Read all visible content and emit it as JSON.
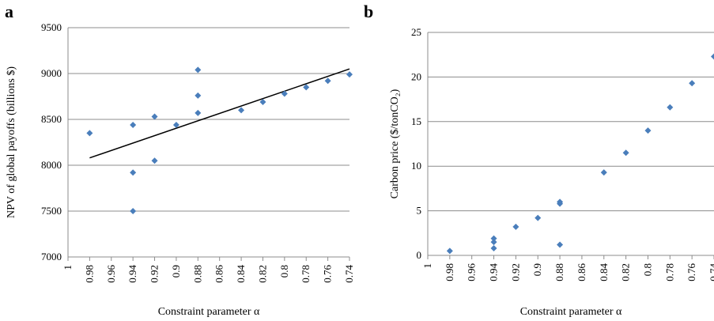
{
  "figure": {
    "panel_a": "a",
    "panel_b": "b"
  },
  "chart_data": [
    {
      "type": "scatter",
      "panel_label": "a",
      "title": "",
      "xlabel": "Constraint parameter α",
      "ylabel": "NPV of global payoffs (billions $)",
      "xlim": [
        1.0,
        0.74
      ],
      "ylim": [
        7000,
        9500
      ],
      "x_ticks": [
        "1",
        "0.98",
        "0.96",
        "0.94",
        "0.92",
        "0.9",
        "0.88",
        "0.86",
        "0.84",
        "0.82",
        "0.8",
        "0.78",
        "0.76",
        "0.74"
      ],
      "y_ticks": [
        "7000",
        "7500",
        "8000",
        "8500",
        "9000",
        "9500"
      ],
      "grid": "horizontal",
      "marker_color": "#4a7ebb",
      "points": [
        {
          "x": 0.98,
          "y": 8350
        },
        {
          "x": 0.94,
          "y": 8440
        },
        {
          "x": 0.94,
          "y": 7920
        },
        {
          "x": 0.94,
          "y": 7500
        },
        {
          "x": 0.92,
          "y": 8530
        },
        {
          "x": 0.92,
          "y": 8050
        },
        {
          "x": 0.9,
          "y": 8440
        },
        {
          "x": 0.88,
          "y": 9040
        },
        {
          "x": 0.88,
          "y": 8760
        },
        {
          "x": 0.88,
          "y": 8570
        },
        {
          "x": 0.84,
          "y": 8600
        },
        {
          "x": 0.82,
          "y": 8690
        },
        {
          "x": 0.8,
          "y": 8780
        },
        {
          "x": 0.78,
          "y": 8850
        },
        {
          "x": 0.76,
          "y": 8920
        },
        {
          "x": 0.74,
          "y": 8990
        }
      ],
      "trendline": {
        "x": [
          0.98,
          0.74
        ],
        "y": [
          8080,
          9050
        ]
      }
    },
    {
      "type": "scatter",
      "panel_label": "b",
      "title": "",
      "xlabel": "Constraint parameter α",
      "ylabel": "Carbon price ($/tonCO₂)",
      "xlim": [
        1.0,
        0.74
      ],
      "ylim": [
        0,
        25
      ],
      "x_ticks": [
        "1",
        "0.98",
        "0.96",
        "0.94",
        "0.92",
        "0.9",
        "0.88",
        "0.86",
        "0.84",
        "0.82",
        "0.8",
        "0.78",
        "0.76",
        "0.74"
      ],
      "y_ticks": [
        "0",
        "5",
        "10",
        "15",
        "20",
        "25"
      ],
      "grid": "horizontal",
      "marker_color": "#4a7ebb",
      "points": [
        {
          "x": 0.98,
          "y": 0.5
        },
        {
          "x": 0.94,
          "y": 1.9
        },
        {
          "x": 0.94,
          "y": 1.5
        },
        {
          "x": 0.94,
          "y": 0.8
        },
        {
          "x": 0.92,
          "y": 3.2
        },
        {
          "x": 0.9,
          "y": 4.2
        },
        {
          "x": 0.88,
          "y": 6.0
        },
        {
          "x": 0.88,
          "y": 5.8
        },
        {
          "x": 0.88,
          "y": 1.2
        },
        {
          "x": 0.84,
          "y": 9.3
        },
        {
          "x": 0.82,
          "y": 11.5
        },
        {
          "x": 0.8,
          "y": 14.0
        },
        {
          "x": 0.78,
          "y": 16.6
        },
        {
          "x": 0.76,
          "y": 19.3
        },
        {
          "x": 0.74,
          "y": 22.3
        }
      ]
    }
  ]
}
